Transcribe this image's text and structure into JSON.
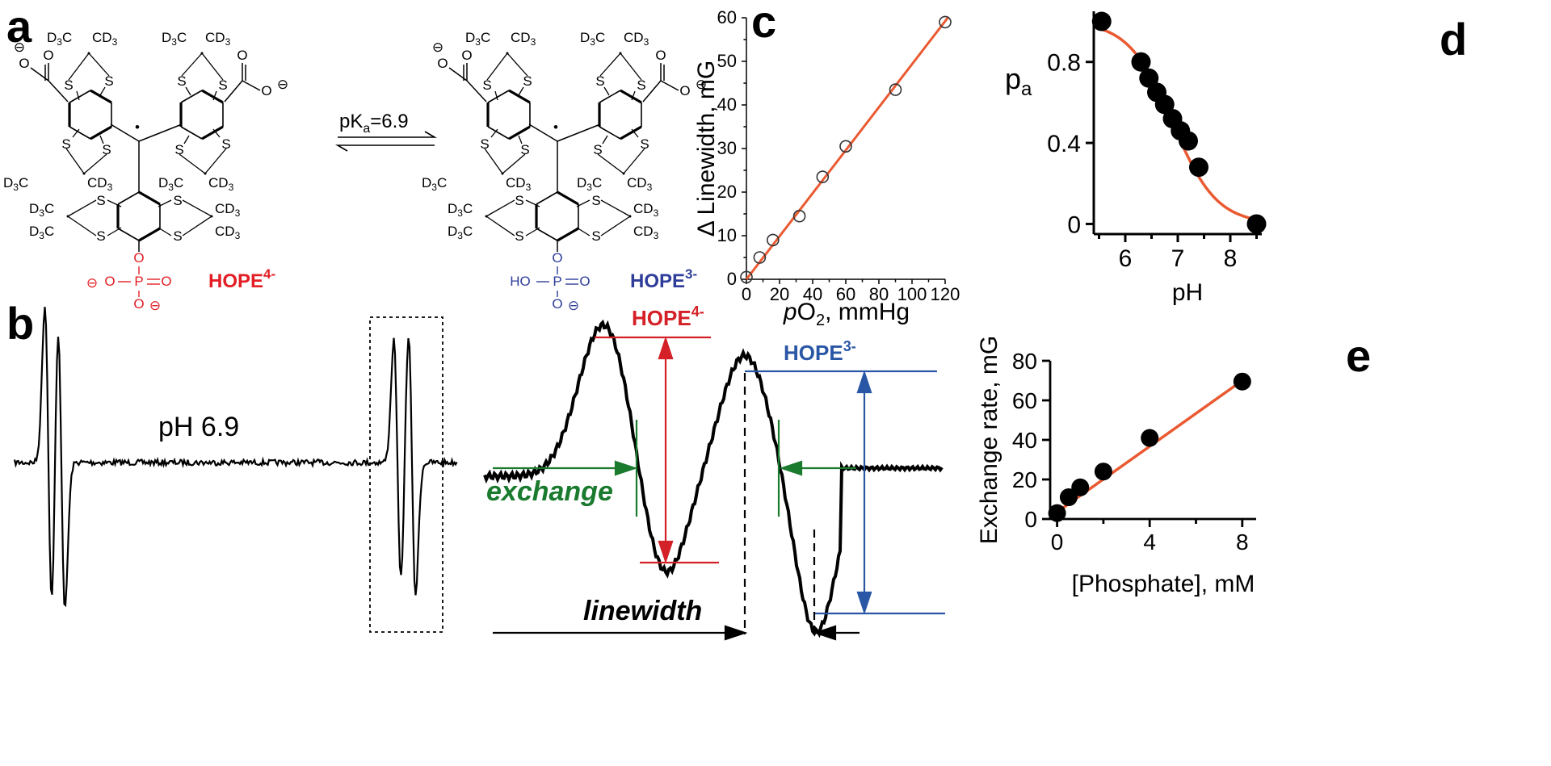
{
  "panels": {
    "a": {
      "letter": "a",
      "equilibrium_label": "pKa=6.9",
      "pka_prefix": "pK",
      "pka_sub": "a",
      "pka_value": "=6.9",
      "species_left": {
        "name": "HOPE",
        "charge": "4-",
        "color": "#e31e24"
      },
      "species_right": {
        "name": "HOPE",
        "charge": "3-",
        "color": "#2e3d9a"
      },
      "group_text": {
        "cd3c": "D3C",
        "cd3": "CD3",
        "s": "S",
        "o": "O",
        "p": "P",
        "ho": "HO",
        "minus": "⊖",
        "radical": "•"
      }
    },
    "b": {
      "letter": "b",
      "spectrum_label": "pH 6.9",
      "hope_left": {
        "name": "HOPE",
        "charge": "4-",
        "color": "#d42027"
      },
      "hope_right": {
        "name": "HOPE",
        "charge": "3-",
        "color": "#2a56a6"
      },
      "exchange_label": "exchange",
      "linewidth_label": "linewidth",
      "exchange_color": "#1a7a2e"
    },
    "c": {
      "letter": "c"
    },
    "d": {
      "letter": "d"
    },
    "e": {
      "letter": "e"
    }
  },
  "fit_color": "#ea5a32",
  "chart_data": [
    {
      "id": "c",
      "type": "scatter",
      "xlabel": "pO2, mmHg",
      "xlabel_parts": {
        "italic": "p",
        "main": "O",
        "sub": "2",
        "rest": ", mmHg"
      },
      "ylabel": "Δ Linewidth, mG",
      "xlim": [
        0,
        120
      ],
      "ylim": [
        0,
        60
      ],
      "x_ticks": [
        0,
        20,
        40,
        60,
        80,
        100,
        120
      ],
      "y_ticks": [
        0,
        10,
        20,
        30,
        40,
        50,
        60
      ],
      "marker": "open-circle",
      "points": [
        {
          "x": 0,
          "y": 0.5
        },
        {
          "x": 8,
          "y": 5
        },
        {
          "x": 16,
          "y": 9
        },
        {
          "x": 32,
          "y": 14.5
        },
        {
          "x": 46,
          "y": 23.5
        },
        {
          "x": 60,
          "y": 30.5
        },
        {
          "x": 90,
          "y": 43.5
        },
        {
          "x": 120,
          "y": 59
        }
      ],
      "fit": {
        "type": "linear",
        "x": [
          0,
          122
        ],
        "y": [
          0,
          60.2
        ]
      }
    },
    {
      "id": "d",
      "type": "scatter",
      "xlabel": "pH",
      "ylabel": "pa",
      "ylabel_parts": {
        "main": "p",
        "sub": "a"
      },
      "xlim": [
        5.4,
        8.6
      ],
      "ylim": [
        -0.05,
        1.05
      ],
      "x_ticks": [
        6,
        7,
        8
      ],
      "y_ticks": [
        0,
        0.4,
        0.8
      ],
      "y_tick_labels": [
        "0",
        "0.4",
        "0.8"
      ],
      "marker": "filled-circle",
      "points": [
        {
          "x": 5.55,
          "y": 1.0
        },
        {
          "x": 6.3,
          "y": 0.8
        },
        {
          "x": 6.45,
          "y": 0.72
        },
        {
          "x": 6.6,
          "y": 0.65
        },
        {
          "x": 6.75,
          "y": 0.59
        },
        {
          "x": 6.9,
          "y": 0.52
        },
        {
          "x": 7.05,
          "y": 0.46
        },
        {
          "x": 7.2,
          "y": 0.41
        },
        {
          "x": 7.4,
          "y": 0.28
        },
        {
          "x": 8.5,
          "y": 0.0
        }
      ],
      "fit": {
        "type": "sigmoid",
        "pKa": 6.9,
        "slope": 0.42,
        "x": [
          5.55,
          8.55
        ]
      }
    },
    {
      "id": "e",
      "type": "scatter",
      "xlabel": "[Phosphate], mM",
      "ylabel": "Exchange rate, mG",
      "xlim": [
        -0.3,
        8.6
      ],
      "ylim": [
        0,
        80
      ],
      "x_ticks": [
        0,
        4,
        8
      ],
      "y_ticks": [
        0,
        20,
        40,
        60,
        80
      ],
      "marker": "filled-circle",
      "points": [
        {
          "x": 0,
          "y": 3
        },
        {
          "x": 0.5,
          "y": 11
        },
        {
          "x": 1,
          "y": 16
        },
        {
          "x": 2,
          "y": 24
        },
        {
          "x": 4,
          "y": 41
        },
        {
          "x": 8,
          "y": 69.5
        }
      ],
      "fit": {
        "type": "linear",
        "x": [
          0,
          8
        ],
        "y": [
          3.5,
          70
        ]
      }
    }
  ]
}
